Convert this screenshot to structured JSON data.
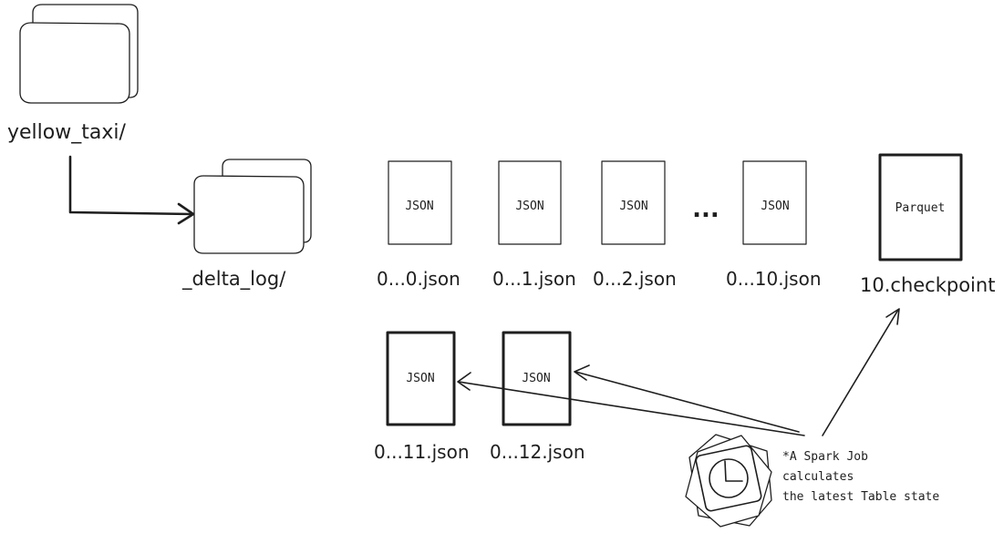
{
  "folders": {
    "root_label": "yellow_taxi/",
    "log_label": "_delta_log/"
  },
  "files_row1": [
    {
      "type_label": "JSON",
      "filename": "0...0.json"
    },
    {
      "type_label": "JSON",
      "filename": "0...1.json"
    },
    {
      "type_label": "JSON",
      "filename": "0...2.json"
    },
    {
      "type_label": "JSON",
      "filename": "0...10.json"
    }
  ],
  "ellipsis": "...",
  "checkpoint": {
    "type_label": "Parquet",
    "filename": "10.checkpoint"
  },
  "files_row2": [
    {
      "type_label": "JSON",
      "filename": "0...11.json"
    },
    {
      "type_label": "JSON",
      "filename": "0...12.json"
    }
  ],
  "spark_job": {
    "icon": "clock-icon",
    "note_line1": "*A Spark Job",
    "note_line2": "calculates",
    "note_line3": "the latest Table state"
  }
}
